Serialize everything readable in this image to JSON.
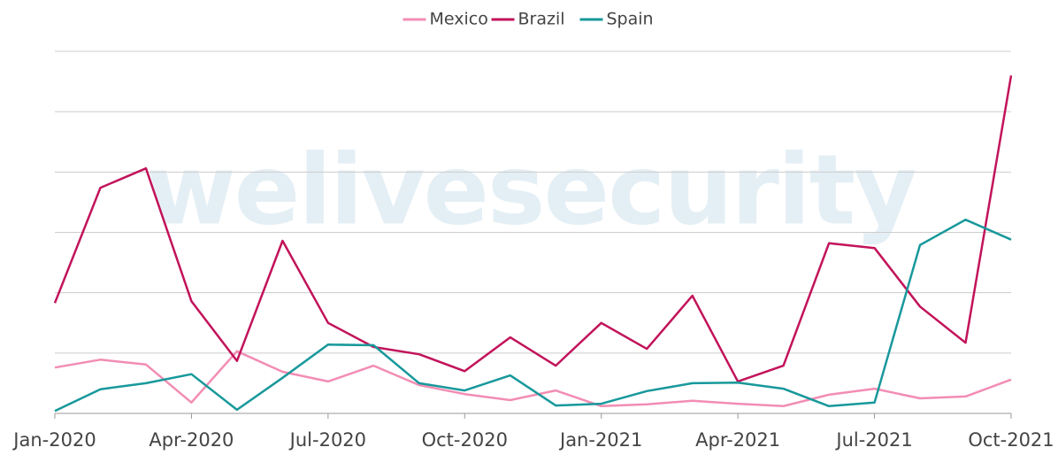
{
  "chart_data": {
    "type": "line",
    "watermark": "welivesecurity",
    "categories": [
      "Jan-2020",
      null,
      null,
      "Apr-2020",
      null,
      null,
      "Jul-2020",
      null,
      null,
      "Oct-2020",
      null,
      null,
      "Jan-2021",
      null,
      null,
      "Apr-2021",
      null,
      null,
      "Jul-2021",
      null,
      null,
      "Oct-2021"
    ],
    "series": [
      {
        "name": "Mexico",
        "color": "#f28db4",
        "values": [
          0.76,
          0.89,
          0.81,
          0.18,
          1.03,
          0.69,
          0.53,
          0.79,
          0.47,
          0.32,
          0.22,
          0.38,
          0.12,
          0.15,
          0.21,
          0.16,
          0.12,
          0.31,
          0.41,
          0.25,
          0.28,
          0.56
        ]
      },
      {
        "name": "Brazil",
        "color": "#c2135a",
        "values": [
          1.83,
          3.74,
          4.06,
          1.86,
          0.87,
          2.86,
          1.5,
          1.1,
          0.98,
          0.7,
          1.26,
          0.79,
          1.5,
          1.07,
          1.95,
          0.53,
          0.79,
          2.82,
          2.74,
          1.77,
          1.17,
          5.6
        ]
      },
      {
        "name": "Spain",
        "color": "#18989b",
        "values": [
          0.04,
          0.4,
          0.5,
          0.65,
          0.06,
          0.59,
          1.14,
          1.13,
          0.5,
          0.38,
          0.63,
          0.13,
          0.16,
          0.37,
          0.5,
          0.51,
          0.41,
          0.12,
          0.18,
          2.79,
          3.21,
          2.88
        ]
      }
    ],
    "ylim": [
      0,
      6
    ],
    "yticks": [
      0,
      1,
      2,
      3,
      4,
      5,
      6
    ],
    "grid": true,
    "legend": "top"
  }
}
